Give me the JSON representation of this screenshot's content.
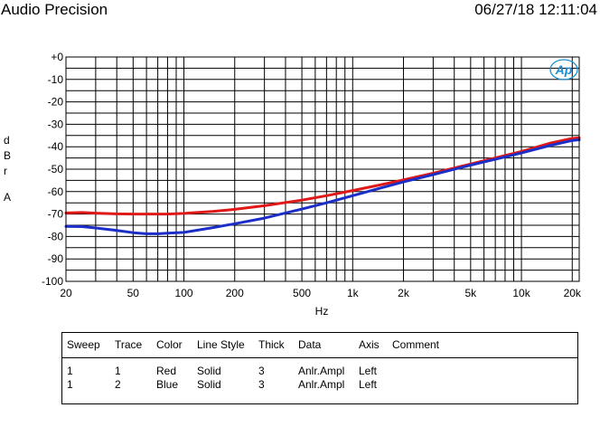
{
  "header": {
    "title": "Audio Precision",
    "timestamp": "06/27/18 12:11:04"
  },
  "logo": {
    "text": "Ap",
    "color": "#1a8fd6"
  },
  "ylabel_chars": [
    "d",
    "B",
    "r",
    "A"
  ],
  "chart_data": {
    "type": "line",
    "xlabel": "Hz",
    "ylabel": "dBr A",
    "x_scale": "log",
    "xlim": [
      20,
      22000
    ],
    "ylim": [
      -100,
      0
    ],
    "grid": true,
    "y_ticks": [
      "+0",
      "-10",
      "-20",
      "-30",
      "-40",
      "-50",
      "-60",
      "-70",
      "-80",
      "-90",
      "-100"
    ],
    "x_ticks": [
      {
        "v": 20,
        "label": "20"
      },
      {
        "v": 50,
        "label": "50"
      },
      {
        "v": 100,
        "label": "100"
      },
      {
        "v": 200,
        "label": "200"
      },
      {
        "v": 500,
        "label": "500"
      },
      {
        "v": 1000,
        "label": "1k"
      },
      {
        "v": 2000,
        "label": "2k"
      },
      {
        "v": 5000,
        "label": "5k"
      },
      {
        "v": 10000,
        "label": "10k"
      },
      {
        "v": 20000,
        "label": "20k"
      }
    ],
    "series": [
      {
        "color": "#e01818",
        "x": [
          20,
          25,
          30,
          40,
          50,
          60,
          70,
          80,
          100,
          150,
          200,
          300,
          500,
          700,
          1000,
          1500,
          2000,
          3000,
          5000,
          7000,
          10000,
          15000,
          20000,
          22000
        ],
        "y": [
          -69.5,
          -69.3,
          -69.6,
          -69.9,
          -70.0,
          -70.0,
          -70.0,
          -70.0,
          -69.7,
          -68.8,
          -67.9,
          -66.3,
          -63.8,
          -61.8,
          -59.5,
          -56.8,
          -54.8,
          -51.8,
          -47.7,
          -45.0,
          -42.1,
          -38.3,
          -36.3,
          -36.0
        ]
      },
      {
        "color": "#1c2ec8",
        "x": [
          20,
          25,
          30,
          40,
          50,
          60,
          70,
          80,
          100,
          150,
          200,
          300,
          500,
          700,
          1000,
          1500,
          2000,
          3000,
          5000,
          7000,
          10000,
          15000,
          20000,
          22000
        ],
        "y": [
          -75.5,
          -75.6,
          -76.2,
          -77.3,
          -78.3,
          -78.8,
          -78.8,
          -78.5,
          -78.2,
          -76.0,
          -74.3,
          -71.8,
          -67.8,
          -65.0,
          -61.8,
          -58.2,
          -55.7,
          -52.4,
          -48.2,
          -45.6,
          -42.8,
          -39.3,
          -37.2,
          -36.9
        ]
      }
    ]
  },
  "legend": {
    "headers": [
      "Sweep",
      "Trace",
      "Color",
      "Line Style",
      "Thick",
      "Data",
      "Axis",
      "Comment"
    ],
    "rows": [
      [
        "1",
        "1",
        "Red",
        "Solid",
        "3",
        "Anlr.Ampl",
        "Left",
        ""
      ],
      [
        "1",
        "2",
        "Blue",
        "Solid",
        "3",
        "Anlr.Ampl",
        "Left",
        ""
      ]
    ]
  }
}
